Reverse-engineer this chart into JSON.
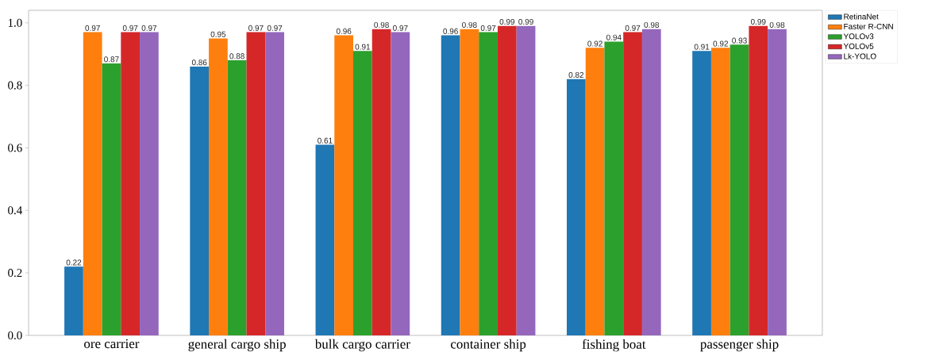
{
  "chart_data": {
    "type": "bar",
    "categories": [
      "ore carrier",
      "general cargo ship",
      "bulk cargo carrier",
      "container ship",
      "fishing boat",
      "passenger ship"
    ],
    "series": [
      {
        "name": "RetinaNet",
        "color": "#1f77b4",
        "values": [
          0.22,
          0.86,
          0.61,
          0.96,
          0.82,
          0.91
        ]
      },
      {
        "name": "Faster R-CNN",
        "color": "#ff7f0e",
        "values": [
          0.97,
          0.95,
          0.96,
          0.98,
          0.92,
          0.92
        ]
      },
      {
        "name": "YOLOv3",
        "color": "#2ca02c",
        "values": [
          0.87,
          0.88,
          0.91,
          0.97,
          0.94,
          0.93
        ]
      },
      {
        "name": "YOLOv5",
        "color": "#d62728",
        "values": [
          0.97,
          0.97,
          0.98,
          0.99,
          0.97,
          0.99
        ]
      },
      {
        "name": "Lk-YOLO",
        "color": "#9467bd",
        "values": [
          0.97,
          0.97,
          0.97,
          0.99,
          0.98,
          0.98
        ]
      }
    ],
    "ylim": [
      0,
      1.04
    ],
    "yticks": [
      {
        "value": 0,
        "label": "0.0"
      },
      0.2,
      0.4,
      0.6,
      0.8,
      {
        "value": 1,
        "label": "1.0"
      }
    ],
    "data_labels": true,
    "legend": "top right",
    "grid": false
  }
}
